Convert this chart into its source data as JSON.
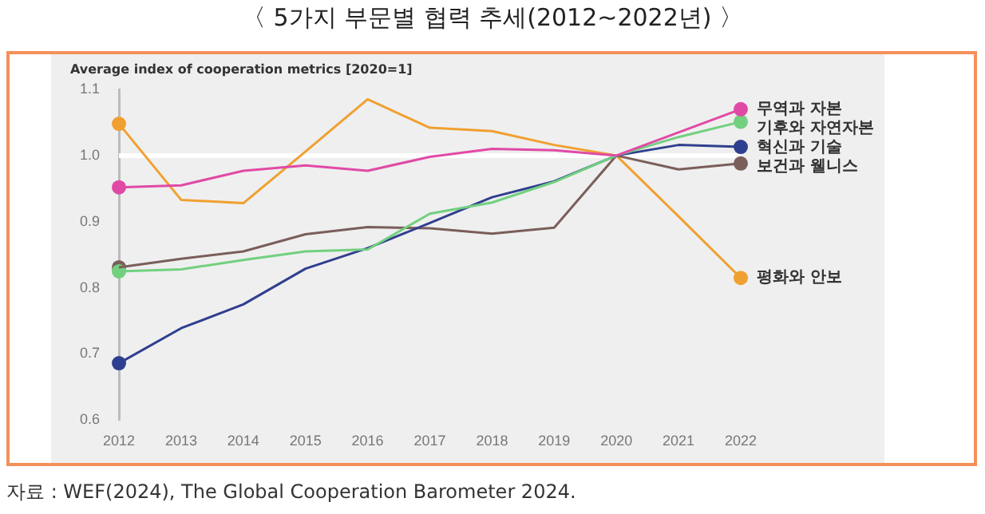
{
  "chart_data": {
    "type": "line",
    "title": "〈 5가지 부문별 협력 추세(2012~2022년) 〉",
    "ylabel": "Average index of cooperation metrics [2020=1]",
    "categories": [
      "2012",
      "2013",
      "2014",
      "2015",
      "2016",
      "2017",
      "2018",
      "2019",
      "2020",
      "2021",
      "2022"
    ],
    "series": [
      {
        "name": "무역과 자본",
        "color": "#e04aa6",
        "values": [
          0.952,
          0.955,
          0.977,
          0.985,
          0.977,
          0.998,
          1.01,
          1.008,
          1.0,
          1.035,
          1.07
        ]
      },
      {
        "name": "기후와 자연자본",
        "color": "#72d07f",
        "values": [
          0.825,
          0.828,
          0.842,
          0.855,
          0.858,
          0.912,
          0.929,
          0.96,
          1.0,
          1.028,
          1.051
        ]
      },
      {
        "name": "혁신과 기술",
        "color": "#2f3f8f",
        "values": [
          0.686,
          0.739,
          0.775,
          0.829,
          0.86,
          0.898,
          0.937,
          0.961,
          1.0,
          1.016,
          1.013
        ]
      },
      {
        "name": "보건과 웰니스",
        "color": "#7a5e5a",
        "values": [
          0.831,
          0.844,
          0.855,
          0.881,
          0.892,
          0.89,
          0.882,
          0.891,
          1.0,
          0.979,
          0.988
        ]
      },
      {
        "name": "평화와 안보",
        "color": "#f0a030",
        "values": [
          1.048,
          0.933,
          0.928,
          1.006,
          1.085,
          1.042,
          1.037,
          1.016,
          1.0,
          0.908,
          0.815
        ]
      },
      {
        "type": "scatter",
        "marker": "circle",
        "color": "#e04aa6",
        "values": [
          0.952,
          null,
          null,
          null,
          null,
          null,
          null,
          null,
          null,
          null,
          1.07
        ]
      },
      {
        "type": "scatter",
        "marker": "circle",
        "color": "#72d07f",
        "values": [
          0.825,
          null,
          null,
          null,
          null,
          null,
          null,
          null,
          null,
          null,
          1.051
        ]
      },
      {
        "type": "scatter",
        "marker": "circle",
        "color": "#2f3f8f",
        "values": [
          0.686,
          null,
          null,
          null,
          null,
          null,
          null,
          null,
          null,
          null,
          1.013
        ]
      },
      {
        "type": "scatter",
        "marker": "circle",
        "color": "#7a5e5a",
        "values": [
          0.831,
          null,
          null,
          null,
          null,
          null,
          null,
          null,
          null,
          null,
          0.988
        ]
      },
      {
        "type": "scatter",
        "marker": "circle",
        "color": "#f0a030",
        "values": [
          1.048,
          null,
          null,
          null,
          null,
          null,
          null,
          null,
          null,
          null,
          0.815
        ]
      }
    ],
    "ylim": [
      0.6,
      1.1
    ],
    "yticks": [
      {
        "value": 0.6,
        "label": "0.6"
      },
      {
        "value": 0.7,
        "label": "0.7"
      },
      {
        "value": 0.8,
        "label": "0.8"
      },
      {
        "value": 0.9,
        "label": "0.9"
      },
      {
        "value": 1.0,
        "label": "1.0"
      },
      {
        "value": 1.1,
        "label": "1.1"
      }
    ],
    "ref_lines": [
      {
        "axis": "y",
        "value": 1.0,
        "color": "#ffffff"
      }
    ],
    "grid": false,
    "legend": false,
    "marker": "none",
    "line_style": "solid",
    "annotations": [
      "자료 : WEF(2024), The Global Cooperation Barometer 2024."
    ]
  }
}
